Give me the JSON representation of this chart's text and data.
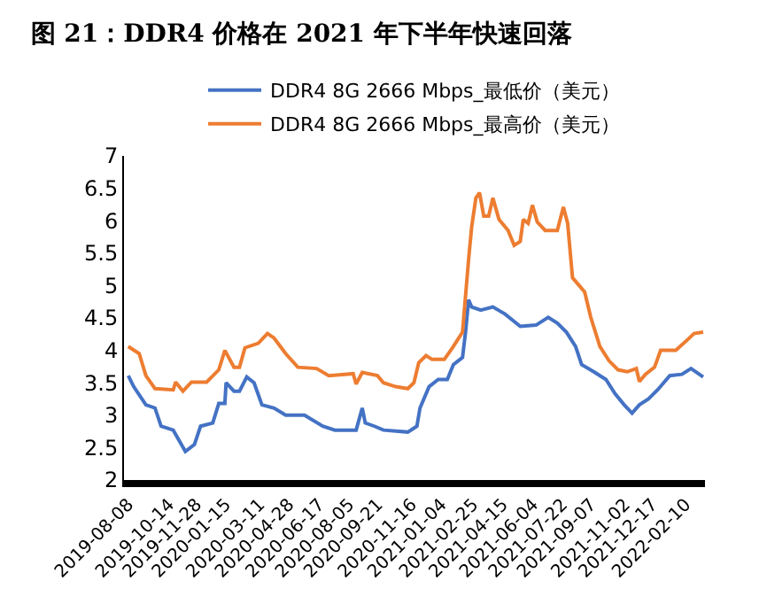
{
  "chart_data": {
    "type": "line",
    "title": "图 21：DDR4 价格在 2021 年下半年快速回落",
    "legend": "top",
    "marker": "none",
    "line_style": "solid",
    "xlim": [
      "2019-08-01",
      "2022-03-14"
    ],
    "xticks": [
      {
        "value": "2019-08-08",
        "label": "2019-08-08"
      },
      {
        "value": "2019-10-14",
        "label": "2019-10-14"
      },
      {
        "value": "2019-11-28",
        "label": "2019-11-28"
      },
      {
        "value": "2020-01-15",
        "label": "2020-01-15"
      },
      {
        "value": "2020-03-11",
        "label": "2020-03-11"
      },
      {
        "value": "2020-04-28",
        "label": "2020-04-28"
      },
      {
        "value": "2020-06-17",
        "label": "2020-06-17"
      },
      {
        "value": "2020-08-05",
        "label": "2020-08-05"
      },
      {
        "value": "2020-09-21",
        "label": "2020-09-21"
      },
      {
        "value": "2020-11-16",
        "label": "2020-11-16"
      },
      {
        "value": "2021-01-04",
        "label": "2021-01-04"
      },
      {
        "value": "2021-02-25",
        "label": "2021-02-25"
      },
      {
        "value": "2021-04-15",
        "label": "2021-04-15"
      },
      {
        "value": "2021-06-04",
        "label": "2021-06-04"
      },
      {
        "value": "2021-07-22",
        "label": "2021-07-22"
      },
      {
        "value": "2021-09-07",
        "label": "2021-09-07"
      },
      {
        "value": "2021-11-02",
        "label": "2021-11-02"
      },
      {
        "value": "2021-12-17",
        "label": "2021-12-17"
      },
      {
        "value": "2022-02-10",
        "label": "2022-02-10"
      }
    ],
    "ylim": [
      2,
      7
    ],
    "yticks": [
      2,
      2.5,
      3,
      3.5,
      4,
      4.5,
      5,
      5.5,
      6,
      6.5,
      7
    ],
    "series": [
      {
        "name": "DDR4 8G 2666 Mbps_最低价（美元）",
        "color": "#4472c4",
        "x": [
          "2019-08-08",
          "2019-08-17",
          "2019-09-06",
          "2019-09-21",
          "2019-10-01",
          "2019-10-21",
          "2019-11-10",
          "2019-11-25",
          "2019-12-05",
          "2019-12-25",
          "2020-01-04",
          "2020-01-14",
          "2020-01-16",
          "2020-01-29",
          "2020-02-07",
          "2020-02-19",
          "2020-03-02",
          "2020-03-15",
          "2020-04-04",
          "2020-04-23",
          "2020-05-24",
          "2020-06-23",
          "2020-07-13",
          "2020-08-17",
          "2020-08-27",
          "2020-09-01",
          "2020-09-16",
          "2020-10-01",
          "2020-11-10",
          "2020-11-25",
          "2020-11-30",
          "2020-12-15",
          "2020-12-30",
          "2021-01-14",
          "2021-01-24",
          "2021-02-08",
          "2021-02-13",
          "2021-02-18",
          "2021-02-23",
          "2021-03-10",
          "2021-03-30",
          "2021-04-19",
          "2021-05-14",
          "2021-06-09",
          "2021-06-29",
          "2021-07-14",
          "2021-07-29",
          "2021-08-13",
          "2021-08-23",
          "2021-09-12",
          "2021-10-02",
          "2021-10-17",
          "2021-11-01",
          "2021-11-14",
          "2021-11-26",
          "2021-12-11",
          "2021-12-26",
          "2022-01-15",
          "2022-02-04",
          "2022-02-19",
          "2022-03-11"
        ],
        "values": [
          3.61,
          3.44,
          3.16,
          3.11,
          2.83,
          2.77,
          2.44,
          2.55,
          2.83,
          2.88,
          3.18,
          3.18,
          3.5,
          3.37,
          3.37,
          3.59,
          3.5,
          3.16,
          3.11,
          3.0,
          3.0,
          2.83,
          2.77,
          2.77,
          3.11,
          2.88,
          2.83,
          2.77,
          2.74,
          2.83,
          3.11,
          3.44,
          3.55,
          3.55,
          3.78,
          3.89,
          4.28,
          4.78,
          4.67,
          4.62,
          4.67,
          4.56,
          4.37,
          4.39,
          4.51,
          4.42,
          4.28,
          4.06,
          3.78,
          3.67,
          3.55,
          3.33,
          3.16,
          3.03,
          3.16,
          3.25,
          3.39,
          3.61,
          3.63,
          3.72,
          3.59
        ]
      },
      {
        "name": "DDR4 8G 2666 Mbps_最高价（美元）",
        "color": "#ed7d31",
        "x": [
          "2019-08-08",
          "2019-08-26",
          "2019-09-06",
          "2019-09-21",
          "2019-10-21",
          "2019-10-25",
          "2019-11-06",
          "2019-11-20",
          "2019-12-15",
          "2020-01-04",
          "2020-01-14",
          "2020-01-29",
          "2020-02-07",
          "2020-02-16",
          "2020-03-09",
          "2020-03-24",
          "2020-04-04",
          "2020-04-23",
          "2020-05-13",
          "2020-06-13",
          "2020-07-03",
          "2020-08-12",
          "2020-08-17",
          "2020-08-27",
          "2020-09-21",
          "2020-10-01",
          "2020-10-21",
          "2020-11-10",
          "2020-11-20",
          "2020-11-28",
          "2020-12-10",
          "2020-12-20",
          "2021-01-09",
          "2021-01-24",
          "2021-02-08",
          "2021-02-18",
          "2021-02-23",
          "2021-03-02",
          "2021-03-08",
          "2021-03-15",
          "2021-03-23",
          "2021-03-30",
          "2021-04-09",
          "2021-04-24",
          "2021-05-04",
          "2021-05-14",
          "2021-05-19",
          "2021-05-27",
          "2021-06-03",
          "2021-06-11",
          "2021-06-24",
          "2021-07-14",
          "2021-07-24",
          "2021-07-31",
          "2021-08-08",
          "2021-08-18",
          "2021-08-28",
          "2021-09-07",
          "2021-09-22",
          "2021-10-07",
          "2021-10-22",
          "2021-11-06",
          "2021-11-21",
          "2021-11-26",
          "2021-12-06",
          "2021-12-21",
          "2021-12-31",
          "2022-01-25",
          "2022-02-14",
          "2022-02-24",
          "2022-03-11"
        ],
        "values": [
          4.06,
          3.95,
          3.61,
          3.41,
          3.39,
          3.51,
          3.37,
          3.51,
          3.51,
          3.7,
          4.0,
          3.74,
          3.74,
          4.04,
          4.11,
          4.26,
          4.19,
          3.95,
          3.74,
          3.72,
          3.61,
          3.64,
          3.48,
          3.66,
          3.61,
          3.5,
          3.44,
          3.41,
          3.5,
          3.81,
          3.92,
          3.86,
          3.86,
          4.06,
          4.28,
          5.4,
          5.9,
          6.35,
          6.43,
          6.07,
          6.07,
          6.35,
          6.02,
          5.85,
          5.62,
          5.68,
          6.02,
          5.96,
          6.24,
          5.98,
          5.85,
          5.85,
          6.21,
          5.96,
          5.12,
          5.01,
          4.9,
          4.51,
          4.06,
          3.84,
          3.7,
          3.67,
          3.72,
          3.52,
          3.63,
          3.74,
          4.0,
          4.0,
          4.17,
          4.26,
          4.28
        ]
      }
    ]
  }
}
